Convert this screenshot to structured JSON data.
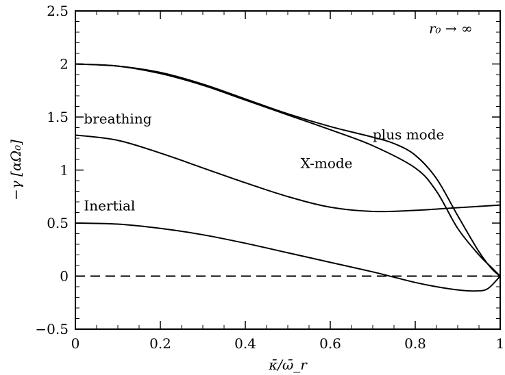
{
  "chart_data": {
    "type": "line",
    "title": "",
    "xlabel": "κ̄/ω̄_r",
    "ylabel": "−γ [αΩ₀]",
    "xlim": [
      0,
      1
    ],
    "ylim": [
      -0.5,
      2.5
    ],
    "xticks": [
      0,
      0.2,
      0.4,
      0.6,
      0.8,
      1
    ],
    "xtick_labels": [
      "0",
      "0.2",
      "0.4",
      "0.6",
      "0.8",
      "1"
    ],
    "yticks": [
      -0.5,
      0,
      0.5,
      1,
      1.5,
      2,
      2.5
    ],
    "ytick_labels": [
      "−0.5",
      "0",
      "0.5",
      "1",
      "1.5",
      "2",
      "2.5"
    ],
    "grid": false,
    "legend": "none",
    "annotations": [
      {
        "text": "r₀ → ∞",
        "x": 0.935,
        "y": 2.29
      },
      {
        "text": "breathing",
        "x": 0.02,
        "y": 1.44
      },
      {
        "text": "Inertial",
        "x": 0.02,
        "y": 0.62
      },
      {
        "text": "X-mode",
        "x": 0.53,
        "y": 1.02
      },
      {
        "text": "plus mode",
        "x": 0.7,
        "y": 1.29
      }
    ],
    "series": [
      {
        "points": [
          [
            0,
            2.0
          ],
          [
            0.1,
            1.98
          ],
          [
            0.2,
            1.91
          ],
          [
            0.3,
            1.8
          ],
          [
            0.4,
            1.66
          ],
          [
            0.5,
            1.52
          ],
          [
            0.6,
            1.38
          ],
          [
            0.7,
            1.23
          ],
          [
            0.8,
            1.02
          ],
          [
            0.85,
            0.8
          ],
          [
            0.9,
            0.45
          ],
          [
            0.95,
            0.2
          ],
          [
            0.98,
            0.08
          ],
          [
            1.0,
            0.0
          ]
        ],
        "style": "solid"
      },
      {
        "points": [
          [
            0,
            2.0
          ],
          [
            0.1,
            1.98
          ],
          [
            0.2,
            1.92
          ],
          [
            0.3,
            1.81
          ],
          [
            0.4,
            1.67
          ],
          [
            0.5,
            1.53
          ],
          [
            0.6,
            1.41
          ],
          [
            0.7,
            1.31
          ],
          [
            0.75,
            1.25
          ],
          [
            0.8,
            1.14
          ],
          [
            0.85,
            0.92
          ],
          [
            0.9,
            0.57
          ],
          [
            0.95,
            0.23
          ],
          [
            0.98,
            0.07
          ],
          [
            1.0,
            0.0
          ]
        ],
        "style": "solid"
      },
      {
        "points": [
          [
            0,
            1.33
          ],
          [
            0.1,
            1.28
          ],
          [
            0.2,
            1.16
          ],
          [
            0.3,
            1.02
          ],
          [
            0.4,
            0.88
          ],
          [
            0.5,
            0.75
          ],
          [
            0.6,
            0.65
          ],
          [
            0.7,
            0.61
          ],
          [
            0.8,
            0.62
          ],
          [
            0.9,
            0.645
          ],
          [
            1.0,
            0.67
          ]
        ],
        "style": "solid"
      },
      {
        "points": [
          [
            0,
            0.5
          ],
          [
            0.1,
            0.49
          ],
          [
            0.2,
            0.45
          ],
          [
            0.3,
            0.39
          ],
          [
            0.4,
            0.31
          ],
          [
            0.5,
            0.22
          ],
          [
            0.6,
            0.13
          ],
          [
            0.7,
            0.04
          ],
          [
            0.75,
            -0.01
          ],
          [
            0.8,
            -0.06
          ],
          [
            0.85,
            -0.1
          ],
          [
            0.9,
            -0.13
          ],
          [
            0.94,
            -0.14
          ],
          [
            0.97,
            -0.12
          ],
          [
            1.0,
            0.0
          ]
        ],
        "style": "solid"
      },
      {
        "points": [
          [
            0,
            0
          ],
          [
            1,
            0
          ]
        ],
        "style": "dashed"
      }
    ]
  }
}
